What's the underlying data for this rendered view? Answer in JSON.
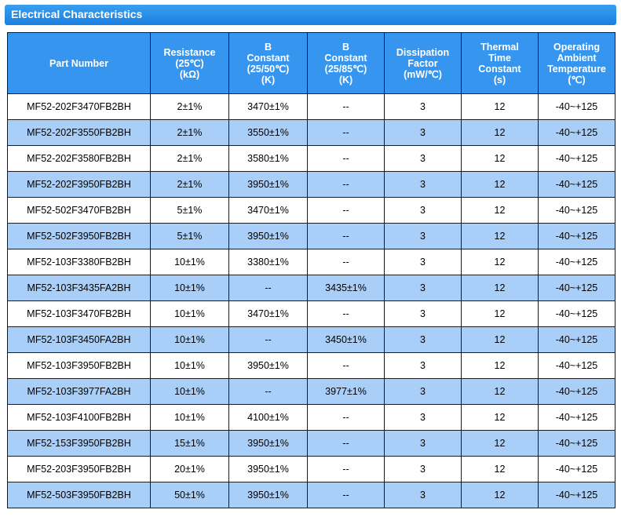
{
  "title": "Electrical Characteristics",
  "columns": [
    {
      "lines": [
        "Part Number"
      ]
    },
    {
      "lines": [
        "Resistance",
        "(25℃)",
        "(kΩ)"
      ]
    },
    {
      "lines": [
        "B",
        "Constant",
        "(25/50℃)",
        "(K)"
      ]
    },
    {
      "lines": [
        "B",
        "Constant",
        "(25/85℃)",
        "(K)"
      ]
    },
    {
      "lines": [
        "Dissipation",
        "Factor",
        "(mW/℃)"
      ]
    },
    {
      "lines": [
        "Thermal",
        "Time",
        "Constant",
        "(s)"
      ]
    },
    {
      "lines": [
        "Operating",
        "Ambient",
        "Temperature",
        "(℃)"
      ]
    }
  ],
  "rows": [
    [
      "MF52-202F3470FB2BH",
      "2±1%",
      "3470±1%",
      "--",
      "3",
      "12",
      "-40~+125"
    ],
    [
      "MF52-202F3550FB2BH",
      "2±1%",
      "3550±1%",
      "--",
      "3",
      "12",
      "-40~+125"
    ],
    [
      "MF52-202F3580FB2BH",
      "2±1%",
      "3580±1%",
      "--",
      "3",
      "12",
      "-40~+125"
    ],
    [
      "MF52-202F3950FB2BH",
      "2±1%",
      "3950±1%",
      "--",
      "3",
      "12",
      "-40~+125"
    ],
    [
      "MF52-502F3470FB2BH",
      "5±1%",
      "3470±1%",
      "--",
      "3",
      "12",
      "-40~+125"
    ],
    [
      "MF52-502F3950FB2BH",
      "5±1%",
      "3950±1%",
      "--",
      "3",
      "12",
      "-40~+125"
    ],
    [
      "MF52-103F3380FB2BH",
      "10±1%",
      "3380±1%",
      "--",
      "3",
      "12",
      "-40~+125"
    ],
    [
      "MF52-103F3435FA2BH",
      "10±1%",
      "--",
      "3435±1%",
      "3",
      "12",
      "-40~+125"
    ],
    [
      "MF52-103F3470FB2BH",
      "10±1%",
      "3470±1%",
      "--",
      "3",
      "12",
      "-40~+125"
    ],
    [
      "MF52-103F3450FA2BH",
      "10±1%",
      "--",
      "3450±1%",
      "3",
      "12",
      "-40~+125"
    ],
    [
      "MF52-103F3950FB2BH",
      "10±1%",
      "3950±1%",
      "--",
      "3",
      "12",
      "-40~+125"
    ],
    [
      "MF52-103F3977FA2BH",
      "10±1%",
      "--",
      "3977±1%",
      "3",
      "12",
      "-40~+125"
    ],
    [
      "MF52-103F4100FB2BH",
      "10±1%",
      "4100±1%",
      "--",
      "3",
      "12",
      "-40~+125"
    ],
    [
      "MF52-153F3950FB2BH",
      "15±1%",
      "3950±1%",
      "--",
      "3",
      "12",
      "-40~+125"
    ],
    [
      "MF52-203F3950FB2BH",
      "20±1%",
      "3950±1%",
      "--",
      "3",
      "12",
      "-40~+125"
    ],
    [
      "MF52-503F3950FB2BH",
      "50±1%",
      "3950±1%",
      "--",
      "3",
      "12",
      "-40~+125"
    ]
  ],
  "colors": {
    "header_bg": "#3696ef",
    "alt_row_bg": "#a9cff8",
    "title_bar": "#1a7fe0"
  }
}
